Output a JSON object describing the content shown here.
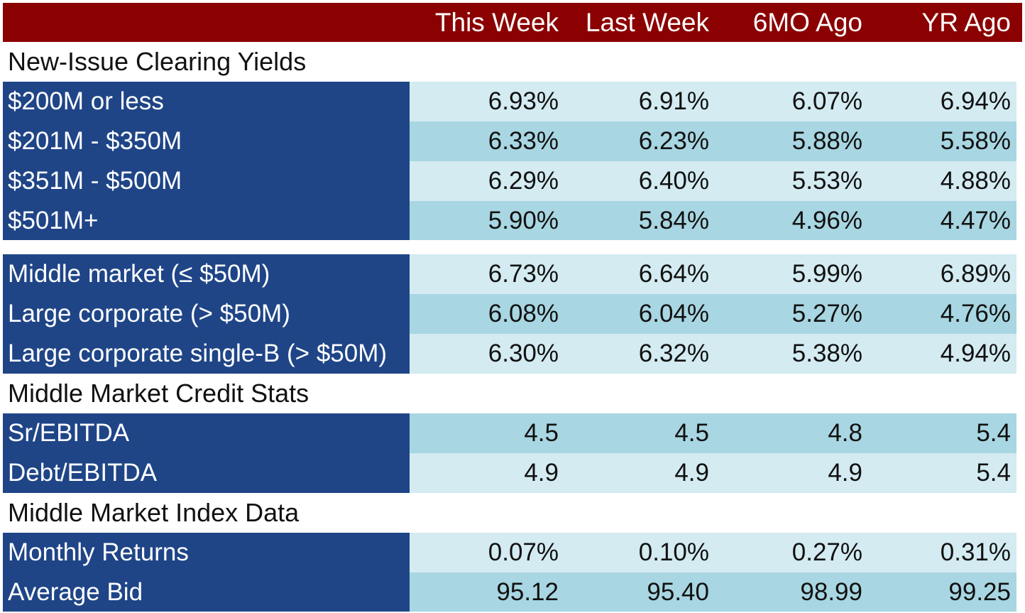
{
  "header": {
    "columns": [
      "This Week",
      "Last Week",
      "6MO Ago",
      "YR Ago"
    ]
  },
  "sections": {
    "new_issue": "New-Issue Clearing Yields",
    "credit_stats": "Middle Market Credit Stats",
    "index_data": "Middle Market Index Data"
  },
  "rows": {
    "r200": {
      "label": "$200M or less",
      "values": [
        "6.93%",
        "6.91%",
        "6.07%",
        "6.94%"
      ]
    },
    "r201": {
      "label": "$201M - $350M",
      "values": [
        "6.33%",
        "6.23%",
        "5.88%",
        "5.58%"
      ]
    },
    "r351": {
      "label": "$351M - $500M",
      "values": [
        "6.29%",
        "6.40%",
        "5.53%",
        "4.88%"
      ]
    },
    "r501": {
      "label": "$501M+",
      "values": [
        "5.90%",
        "5.84%",
        "4.96%",
        "4.47%"
      ]
    },
    "mid": {
      "label": "Middle market (≤  $50M)",
      "values": [
        "6.73%",
        "6.64%",
        "5.99%",
        "6.89%"
      ]
    },
    "large": {
      "label": "Large corporate (> $50M)",
      "values": [
        "6.08%",
        "6.04%",
        "5.27%",
        "4.76%"
      ]
    },
    "largeb": {
      "label": "Large corporate single-B (> $50M)",
      "values": [
        "6.30%",
        "6.32%",
        "5.38%",
        "4.94%"
      ]
    },
    "sr": {
      "label": "Sr/EBITDA",
      "values": [
        "4.5",
        "4.5",
        "4.8",
        "5.4"
      ]
    },
    "debt": {
      "label": "Debt/EBITDA",
      "values": [
        "4.9",
        "4.9",
        "4.9",
        "5.4"
      ]
    },
    "monthly": {
      "label": "Monthly Returns",
      "values": [
        "0.07%",
        "0.10%",
        "0.27%",
        "0.31%"
      ]
    },
    "bid": {
      "label": "Average Bid",
      "values": [
        "95.12",
        "95.40",
        "98.99",
        "99.25"
      ]
    }
  },
  "colors": {
    "header_bg": "#8b0000",
    "label_bg": "#1f4587",
    "row_light": "#d3ebf1",
    "row_dark": "#a8d6e2"
  }
}
